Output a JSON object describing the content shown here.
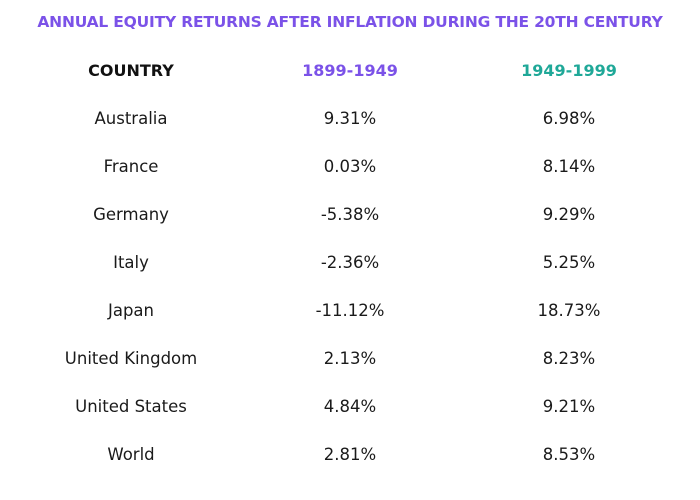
{
  "title": "ANNUAL EQUITY RETURNS AFTER INFLATION DURING THE 20TH CENTURY",
  "colors": {
    "title": "#7b52e8",
    "header_country": "#111111",
    "header_1899_1949": "#7b52e8",
    "header_1949_1999": "#1fa898",
    "text": "#1a1a1a"
  },
  "chart_data": {
    "type": "table",
    "title": "ANNUAL EQUITY RETURNS AFTER INFLATION DURING THE 20TH CENTURY",
    "columns": [
      "COUNTRY",
      "1899-1949",
      "1949-1999"
    ],
    "rows": [
      [
        "Australia",
        "9.31%",
        "6.98%"
      ],
      [
        "France",
        "0.03%",
        "8.14%"
      ],
      [
        "Germany",
        "-5.38%",
        "9.29%"
      ],
      [
        "Italy",
        "-2.36%",
        "5.25%"
      ],
      [
        "Japan",
        "-11.12%",
        "18.73%"
      ],
      [
        "United Kingdom",
        "2.13%",
        "8.23%"
      ],
      [
        "United States",
        "4.84%",
        "9.21%"
      ],
      [
        "World",
        "2.81%",
        "8.53%"
      ]
    ]
  }
}
